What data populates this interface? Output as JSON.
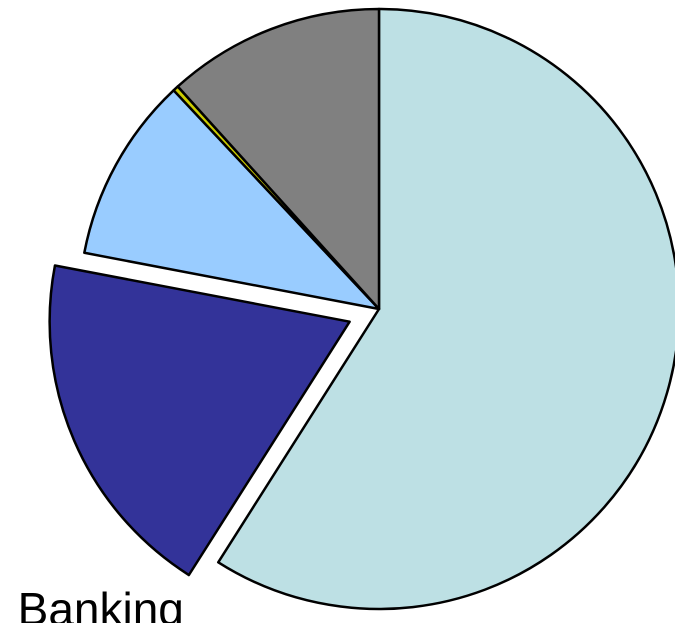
{
  "chart_data": {
    "type": "pie",
    "categories": [
      null,
      "Banking",
      null,
      null,
      null
    ],
    "values": [
      59,
      19,
      10,
      0.3,
      11.7
    ],
    "colors": [
      "#bde0e4",
      "#333399",
      "#99ccff",
      "#cccc00",
      "#808080"
    ],
    "explode": [
      false,
      true,
      false,
      false,
      false
    ]
  }
}
